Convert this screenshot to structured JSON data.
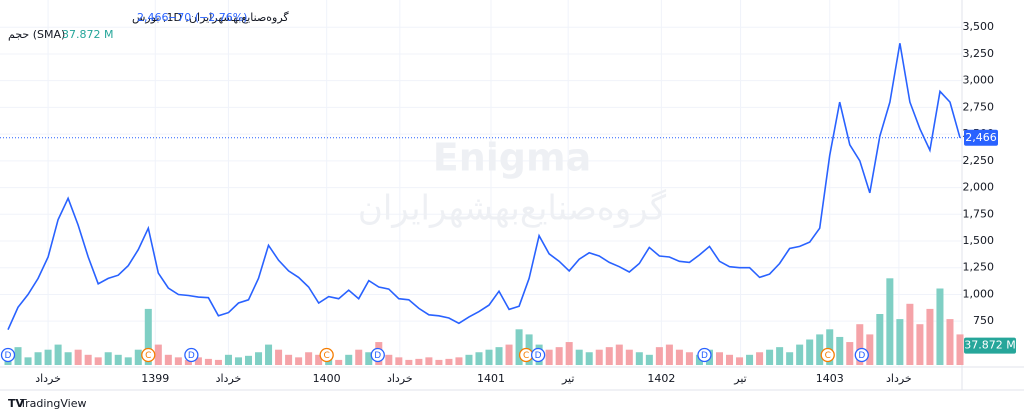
{
  "chart_data": {
    "type": "line",
    "title": "گروه‌صنایع‌بهشهرایران, 1D, بورس",
    "last_price": {
      "value": 2466,
      "label": "2,466"
    },
    "change": "−70 (−2.76%)",
    "volume_title": "حجم (SMA)",
    "volume_sma": {
      "value": 37.872,
      "label": "37.872 M"
    },
    "watermark": [
      "Enigma",
      "گروه‌صنایع‌بهشهرایران"
    ],
    "brand": "TradingView",
    "xlim": [
      0,
      95
    ],
    "xticks": [
      {
        "value": 4,
        "label": "خرداد"
      },
      {
        "value": 14.7,
        "label": "1399"
      },
      {
        "value": 22,
        "label": "خرداد"
      },
      {
        "value": 31.8,
        "label": "1400"
      },
      {
        "value": 39.1,
        "label": "خرداد"
      },
      {
        "value": 48.2,
        "label": "1401"
      },
      {
        "value": 55.9,
        "label": "تیر"
      },
      {
        "value": 65.2,
        "label": "1402"
      },
      {
        "value": 73.1,
        "label": "تیر"
      },
      {
        "value": 82,
        "label": "1403"
      },
      {
        "value": 88.9,
        "label": "خرداد"
      }
    ],
    "ylim": [
      340,
      3680
    ],
    "yticks": [
      {
        "value": 750,
        "label": "750"
      },
      {
        "value": 1000,
        "label": "1,000"
      },
      {
        "value": 1250,
        "label": "1,250"
      },
      {
        "value": 1500,
        "label": "1,500"
      },
      {
        "value": 1750,
        "label": "1,750"
      },
      {
        "value": 2000,
        "label": "2,000"
      },
      {
        "value": 2250,
        "label": "2,250"
      },
      {
        "value": 2500,
        "label": "2,500"
      },
      {
        "value": 2750,
        "label": "2,750"
      },
      {
        "value": 3000,
        "label": "3,000"
      },
      {
        "value": 3250,
        "label": "3,250"
      },
      {
        "value": 3500,
        "label": "3,500"
      }
    ],
    "grid": true,
    "series": [
      {
        "name": "Price",
        "color": "#2962ff",
        "values": [
          670,
          880,
          1000,
          1150,
          1350,
          1700,
          1900,
          1650,
          1350,
          1100,
          1150,
          1180,
          1270,
          1420,
          1620,
          1200,
          1060,
          1000,
          990,
          975,
          970,
          800,
          830,
          920,
          950,
          1150,
          1460,
          1320,
          1220,
          1160,
          1070,
          920,
          980,
          960,
          1040,
          960,
          1130,
          1070,
          1050,
          960,
          950,
          870,
          810,
          800,
          780,
          730,
          790,
          840,
          900,
          1030,
          860,
          890,
          1150,
          1550,
          1380,
          1310,
          1220,
          1330,
          1390,
          1360,
          1300,
          1260,
          1210,
          1290,
          1440,
          1360,
          1350,
          1310,
          1300,
          1370,
          1450,
          1310,
          1260,
          1250,
          1250,
          1160,
          1190,
          1290,
          1430,
          1450,
          1490,
          1620,
          2300,
          2800,
          2400,
          2250,
          1950,
          2480,
          2800,
          3350,
          2800,
          2550,
          2350,
          2900,
          2800,
          2466
        ]
      }
    ],
    "volume": {
      "up_color": "#7fcfc4",
      "down_color": "#f5a3a8",
      "ylim": [
        0,
        200
      ],
      "values": [
        20,
        35,
        15,
        25,
        30,
        40,
        25,
        30,
        20,
        15,
        25,
        20,
        15,
        30,
        110,
        40,
        20,
        15,
        10,
        15,
        12,
        10,
        20,
        15,
        18,
        25,
        40,
        30,
        20,
        15,
        25,
        20,
        15,
        10,
        20,
        30,
        25,
        45,
        20,
        15,
        10,
        12,
        15,
        10,
        12,
        15,
        20,
        25,
        30,
        35,
        40,
        70,
        60,
        40,
        30,
        35,
        45,
        30,
        25,
        30,
        35,
        40,
        30,
        25,
        20,
        35,
        40,
        30,
        25,
        20,
        30,
        25,
        20,
        15,
        20,
        25,
        30,
        35,
        25,
        40,
        50,
        60,
        70,
        55,
        45,
        80,
        60,
        100,
        170,
        90,
        120,
        80,
        110,
        150,
        90,
        60
      ]
    },
    "events": [
      {
        "x": 0,
        "label": "D"
      },
      {
        "x": 14,
        "label": "C"
      },
      {
        "x": 18.3,
        "label": "D"
      },
      {
        "x": 31.8,
        "label": "C"
      },
      {
        "x": 36.9,
        "label": "D"
      },
      {
        "x": 51.7,
        "label": "C"
      },
      {
        "x": 52.9,
        "label": "D"
      },
      {
        "x": 69.5,
        "label": "D"
      },
      {
        "x": 81.8,
        "label": "C"
      },
      {
        "x": 85.2,
        "label": "D"
      }
    ]
  }
}
